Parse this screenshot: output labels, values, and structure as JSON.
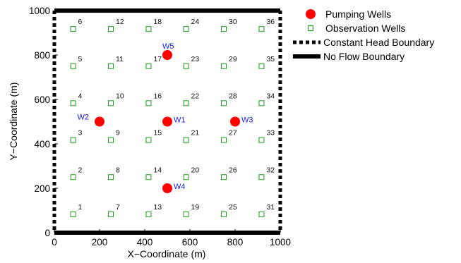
{
  "chart_data": {
    "type": "scatter",
    "xlabel": "X−Coordinate (m)",
    "ylabel": "Y−Coordinate (m)",
    "xlim": [
      0,
      1000
    ],
    "ylim": [
      0,
      1000
    ],
    "xticks": [
      0,
      200,
      400,
      600,
      800,
      1000
    ],
    "yticks": [
      0,
      200,
      400,
      600,
      800,
      1000
    ],
    "grid": false,
    "legend_position": "outside-right",
    "series": [
      {
        "name": "Pumping Wells",
        "marker": "filled-circle",
        "color": "#ff0000",
        "points": [
          {
            "label": "W1",
            "x": 500,
            "y": 500
          },
          {
            "label": "W2",
            "x": 200,
            "y": 500
          },
          {
            "label": "W3",
            "x": 800,
            "y": 500
          },
          {
            "label": "W4",
            "x": 500,
            "y": 200
          },
          {
            "label": "W5",
            "x": 500,
            "y": 800
          }
        ]
      },
      {
        "name": "Observation Wells",
        "marker": "open-square",
        "color": "#1a9e1a",
        "points": [
          {
            "label": "1",
            "x": 83,
            "y": 83
          },
          {
            "label": "2",
            "x": 83,
            "y": 250
          },
          {
            "label": "3",
            "x": 83,
            "y": 417
          },
          {
            "label": "4",
            "x": 83,
            "y": 583
          },
          {
            "label": "5",
            "x": 83,
            "y": 750
          },
          {
            "label": "6",
            "x": 83,
            "y": 917
          },
          {
            "label": "7",
            "x": 250,
            "y": 83
          },
          {
            "label": "8",
            "x": 250,
            "y": 250
          },
          {
            "label": "9",
            "x": 250,
            "y": 417
          },
          {
            "label": "10",
            "x": 250,
            "y": 583
          },
          {
            "label": "11",
            "x": 250,
            "y": 750
          },
          {
            "label": "12",
            "x": 250,
            "y": 917
          },
          {
            "label": "13",
            "x": 417,
            "y": 83
          },
          {
            "label": "14",
            "x": 417,
            "y": 250
          },
          {
            "label": "15",
            "x": 417,
            "y": 417
          },
          {
            "label": "16",
            "x": 417,
            "y": 583
          },
          {
            "label": "17",
            "x": 417,
            "y": 750
          },
          {
            "label": "18",
            "x": 417,
            "y": 917
          },
          {
            "label": "19",
            "x": 583,
            "y": 83
          },
          {
            "label": "20",
            "x": 583,
            "y": 250
          },
          {
            "label": "21",
            "x": 583,
            "y": 417
          },
          {
            "label": "22",
            "x": 583,
            "y": 583
          },
          {
            "label": "23",
            "x": 583,
            "y": 750
          },
          {
            "label": "24",
            "x": 583,
            "y": 917
          },
          {
            "label": "25",
            "x": 750,
            "y": 83
          },
          {
            "label": "26",
            "x": 750,
            "y": 250
          },
          {
            "label": "27",
            "x": 750,
            "y": 417
          },
          {
            "label": "28",
            "x": 750,
            "y": 583
          },
          {
            "label": "29",
            "x": 750,
            "y": 750
          },
          {
            "label": "30",
            "x": 750,
            "y": 917
          },
          {
            "label": "31",
            "x": 917,
            "y": 83
          },
          {
            "label": "32",
            "x": 917,
            "y": 250
          },
          {
            "label": "33",
            "x": 917,
            "y": 417
          },
          {
            "label": "34",
            "x": 917,
            "y": 583
          },
          {
            "label": "35",
            "x": 917,
            "y": 750
          },
          {
            "label": "36",
            "x": 917,
            "y": 917
          }
        ]
      }
    ],
    "boundaries": [
      {
        "name": "Constant Head Boundary",
        "style": "dashed",
        "sides": [
          "left",
          "right"
        ]
      },
      {
        "name": "No Flow Boundary",
        "style": "solid",
        "sides": [
          "top",
          "bottom"
        ]
      }
    ],
    "legend": [
      {
        "label": "Pumping Wells",
        "symbol": "filled-circle",
        "color": "#ff0000"
      },
      {
        "label": "Observation Wells",
        "symbol": "open-square",
        "color": "#1a9e1a"
      },
      {
        "label": "Constant Head Boundary",
        "symbol": "dashed-line",
        "color": "#000000"
      },
      {
        "label": "No Flow Boundary",
        "symbol": "solid-line",
        "color": "#000000"
      }
    ]
  }
}
